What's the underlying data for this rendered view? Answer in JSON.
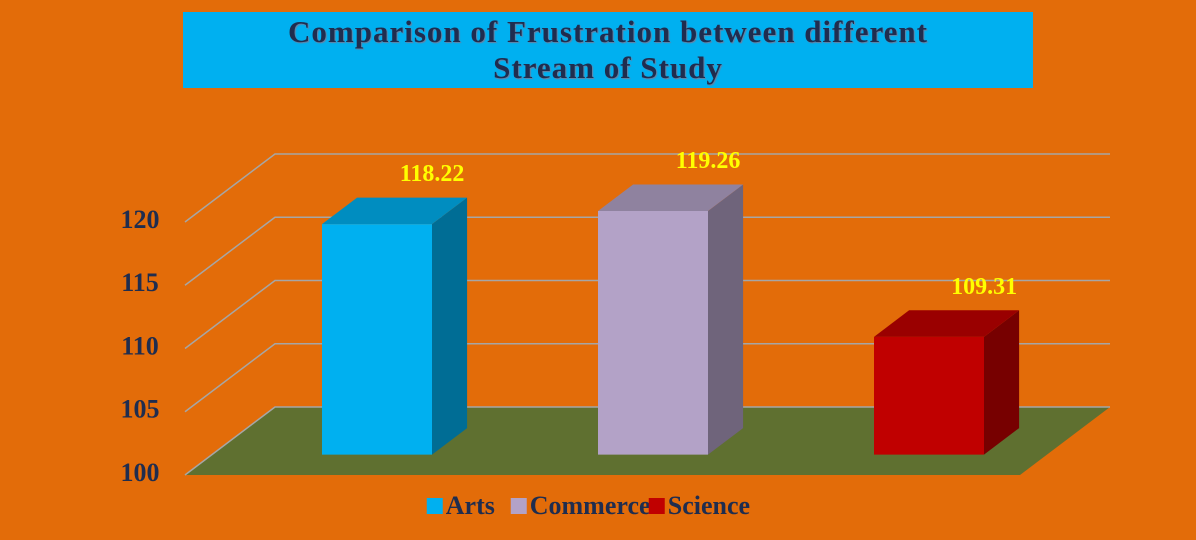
{
  "chart_data": {
    "type": "bar",
    "title": "Comparison of Frustration between different Stream of Study",
    "categories": [
      null
    ],
    "series": [
      {
        "name": "Arts",
        "color": "#00b0f0",
        "values": [
          118.22
        ]
      },
      {
        "name": "Commerce",
        "color": "#b3a2c7",
        "values": [
          119.26
        ]
      },
      {
        "name": "Science",
        "color": "#c00000",
        "values": [
          109.31
        ]
      }
    ],
    "ylim": [
      100,
      120
    ],
    "yticks": [
      100,
      105,
      110,
      115,
      120
    ],
    "grid": true,
    "legend": "bottom"
  }
}
